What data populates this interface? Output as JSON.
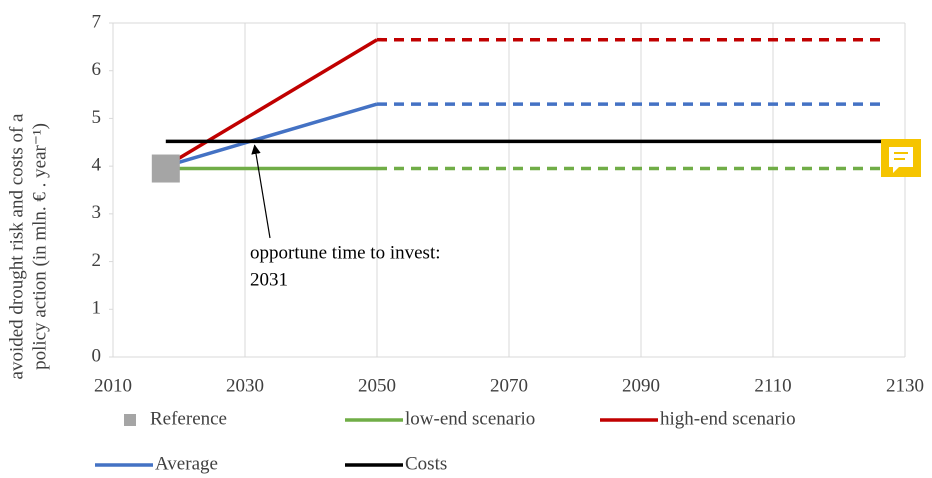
{
  "chart_data": {
    "type": "line",
    "y_label_lines": [
      "avoided drought risk and costs of a",
      "policy action (in mln. € . year⁻¹)"
    ],
    "xlim": [
      2010,
      2130
    ],
    "xticks": [
      2010,
      2030,
      2050,
      2070,
      2090,
      2110,
      2130
    ],
    "ylim": [
      0,
      7
    ],
    "yticks": [
      0,
      1,
      2,
      3,
      4,
      5,
      6,
      7
    ],
    "grid": "x",
    "series": [
      {
        "name": "Reference",
        "color": "#a5a5a5",
        "marker": "square",
        "x": [
          2018
        ],
        "values": [
          3.95
        ]
      },
      {
        "name": "low-end scenario",
        "color": "#70ad47",
        "x": [
          2018,
          2050,
          2127
        ],
        "values": [
          3.95,
          3.95,
          3.95
        ],
        "dashed_from": 2050
      },
      {
        "name": "high-end scenario",
        "color": "#c00000",
        "x": [
          2018,
          2050,
          2127
        ],
        "values": [
          4.0,
          6.65,
          6.65
        ],
        "dashed_from": 2050
      },
      {
        "name": "Average",
        "color": "#4472c4",
        "x": [
          2018,
          2050,
          2127
        ],
        "values": [
          4.0,
          5.3,
          5.3
        ],
        "dashed_from": 2050
      },
      {
        "name": "Costs",
        "color": "#000000",
        "x": [
          2018,
          2127
        ],
        "values": [
          4.52,
          4.52
        ]
      }
    ],
    "annotation": {
      "text_lines": [
        "opportune time to invest:",
        "2031"
      ],
      "x": 2031,
      "y": 4.52
    }
  }
}
